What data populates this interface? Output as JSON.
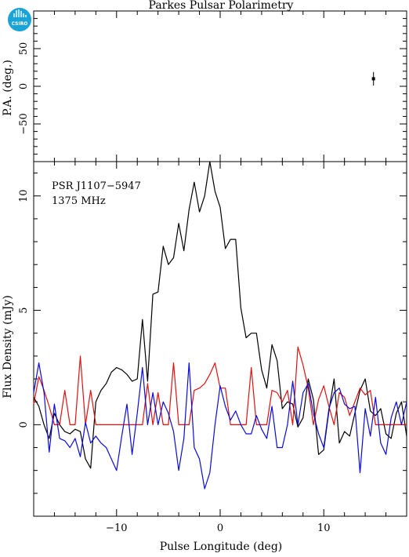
{
  "header": {
    "title": "Parkes Pulsar Polarimetry",
    "logo_text": "CSIRO"
  },
  "chart_data": [
    {
      "type": "scatter",
      "panel": "position-angle",
      "ylabel": "P.A. (deg.)",
      "xlim": [
        -18,
        18
      ],
      "ylim": [
        -100,
        100
      ],
      "yticks": [
        -50,
        0,
        50
      ],
      "points": [
        {
          "x": 14.8,
          "y": 10,
          "yerr": 9
        }
      ]
    },
    {
      "type": "line",
      "panel": "flux-profile",
      "annotation_lines": [
        "PSR J1107−5947",
        "1375 MHz"
      ],
      "xlabel": "Pulse Longitude (deg)",
      "ylabel": "Flux Density (mJy)",
      "xlim": [
        -18,
        18
      ],
      "ylim": [
        -4,
        11.5
      ],
      "xticks": [
        -10,
        0,
        10
      ],
      "yticks": [
        0,
        5,
        10
      ],
      "x": [
        -18,
        -17.5,
        -17,
        -16.5,
        -16,
        -15.5,
        -15,
        -14.5,
        -14,
        -13.5,
        -13,
        -12.5,
        -12,
        -11.5,
        -11,
        -10.5,
        -10,
        -9.5,
        -9,
        -8.5,
        -8,
        -7.5,
        -7,
        -6.5,
        -6,
        -5.5,
        -5,
        -4.5,
        -4,
        -3.5,
        -3,
        -2.5,
        -2,
        -1.5,
        -1,
        -0.5,
        0,
        0.5,
        1,
        1.5,
        2,
        2.5,
        3,
        3.5,
        4,
        4.5,
        5,
        5.5,
        6,
        6.5,
        7,
        7.5,
        8,
        8.5,
        9,
        9.5,
        10,
        10.5,
        11,
        11.5,
        12,
        12.5,
        13,
        13.5,
        14,
        14.5,
        15,
        15.5,
        16,
        16.5,
        17,
        17.5,
        18
      ],
      "series": [
        {
          "color": "#000000",
          "values": [
            1.2,
            0.8,
            0.0,
            -0.6,
            0.5,
            0.0,
            -0.3,
            -0.4,
            -0.2,
            -0.3,
            -1.5,
            -1.9,
            1.0,
            1.5,
            1.8,
            2.3,
            2.5,
            2.4,
            2.2,
            1.9,
            2.0,
            4.6,
            1.9,
            5.7,
            5.8,
            7.8,
            7.0,
            7.3,
            8.8,
            7.6,
            9.4,
            10.6,
            9.3,
            10.0,
            11.5,
            10.2,
            9.5,
            7.7,
            8.1,
            8.1,
            5.1,
            3.8,
            4.0,
            4.0,
            2.4,
            1.6,
            3.5,
            2.8,
            0.7,
            1.0,
            0.9,
            -0.1,
            0.3,
            2.0,
            1.1,
            -1.3,
            -1.1,
            0.6,
            2.0,
            -0.8,
            -0.3,
            -0.5,
            0.5,
            1.5,
            2.0,
            0.6,
            0.4,
            0.7,
            -0.4,
            -0.6,
            0.5,
            1.0,
            -0.5
          ]
        },
        {
          "color": "#e01010",
          "values": [
            0.9,
            2.1,
            1.5,
            0.8,
            0.0,
            0.0,
            1.5,
            0.0,
            0.0,
            3.0,
            0.0,
            1.5,
            0.0,
            0.0,
            0.0,
            0.0,
            0.0,
            0.0,
            0.0,
            0.0,
            0.0,
            0.0,
            1.8,
            0.0,
            1.4,
            0.0,
            0.0,
            2.7,
            0.0,
            0.0,
            0.0,
            1.5,
            1.6,
            1.8,
            2.2,
            2.7,
            1.6,
            1.6,
            0.0,
            0.0,
            0.0,
            0.0,
            2.5,
            0.0,
            0.0,
            0.0,
            1.5,
            1.4,
            1.0,
            1.5,
            0.0,
            3.4,
            2.6,
            1.6,
            0.0,
            1.1,
            1.7,
            0.8,
            0.0,
            1.4,
            1.2,
            0.4,
            1.0,
            1.6,
            1.3,
            1.5,
            0.0,
            0.0,
            0.0,
            0.0,
            0.0,
            0.0,
            0.0
          ]
        },
        {
          "color": "#0b0bd8",
          "values": [
            1.4,
            2.7,
            1.4,
            -1.2,
            0.9,
            -0.6,
            -0.7,
            -1.0,
            -0.6,
            -1.4,
            0.1,
            -0.8,
            -0.5,
            -0.8,
            -1.0,
            -1.5,
            -2.0,
            -0.5,
            0.9,
            -1.3,
            0.5,
            2.5,
            0.0,
            1.4,
            0.0,
            1.0,
            0.5,
            -0.3,
            -2.0,
            -0.6,
            2.7,
            -1.0,
            -1.5,
            -2.8,
            -2.1,
            0.0,
            1.7,
            0.8,
            0.2,
            0.6,
            0.0,
            -0.4,
            -0.4,
            0.4,
            -0.2,
            -0.6,
            0.8,
            -1.0,
            -1.0,
            0.0,
            1.9,
            0.0,
            1.4,
            1.8,
            0.5,
            -0.4,
            -1.0,
            0.7,
            1.4,
            1.6,
            0.9,
            0.7,
            0.8,
            -2.1,
            0.7,
            -0.5,
            1.2,
            -0.8,
            -1.3,
            0.3,
            1.0,
            0.0,
            1.0
          ]
        }
      ]
    }
  ]
}
